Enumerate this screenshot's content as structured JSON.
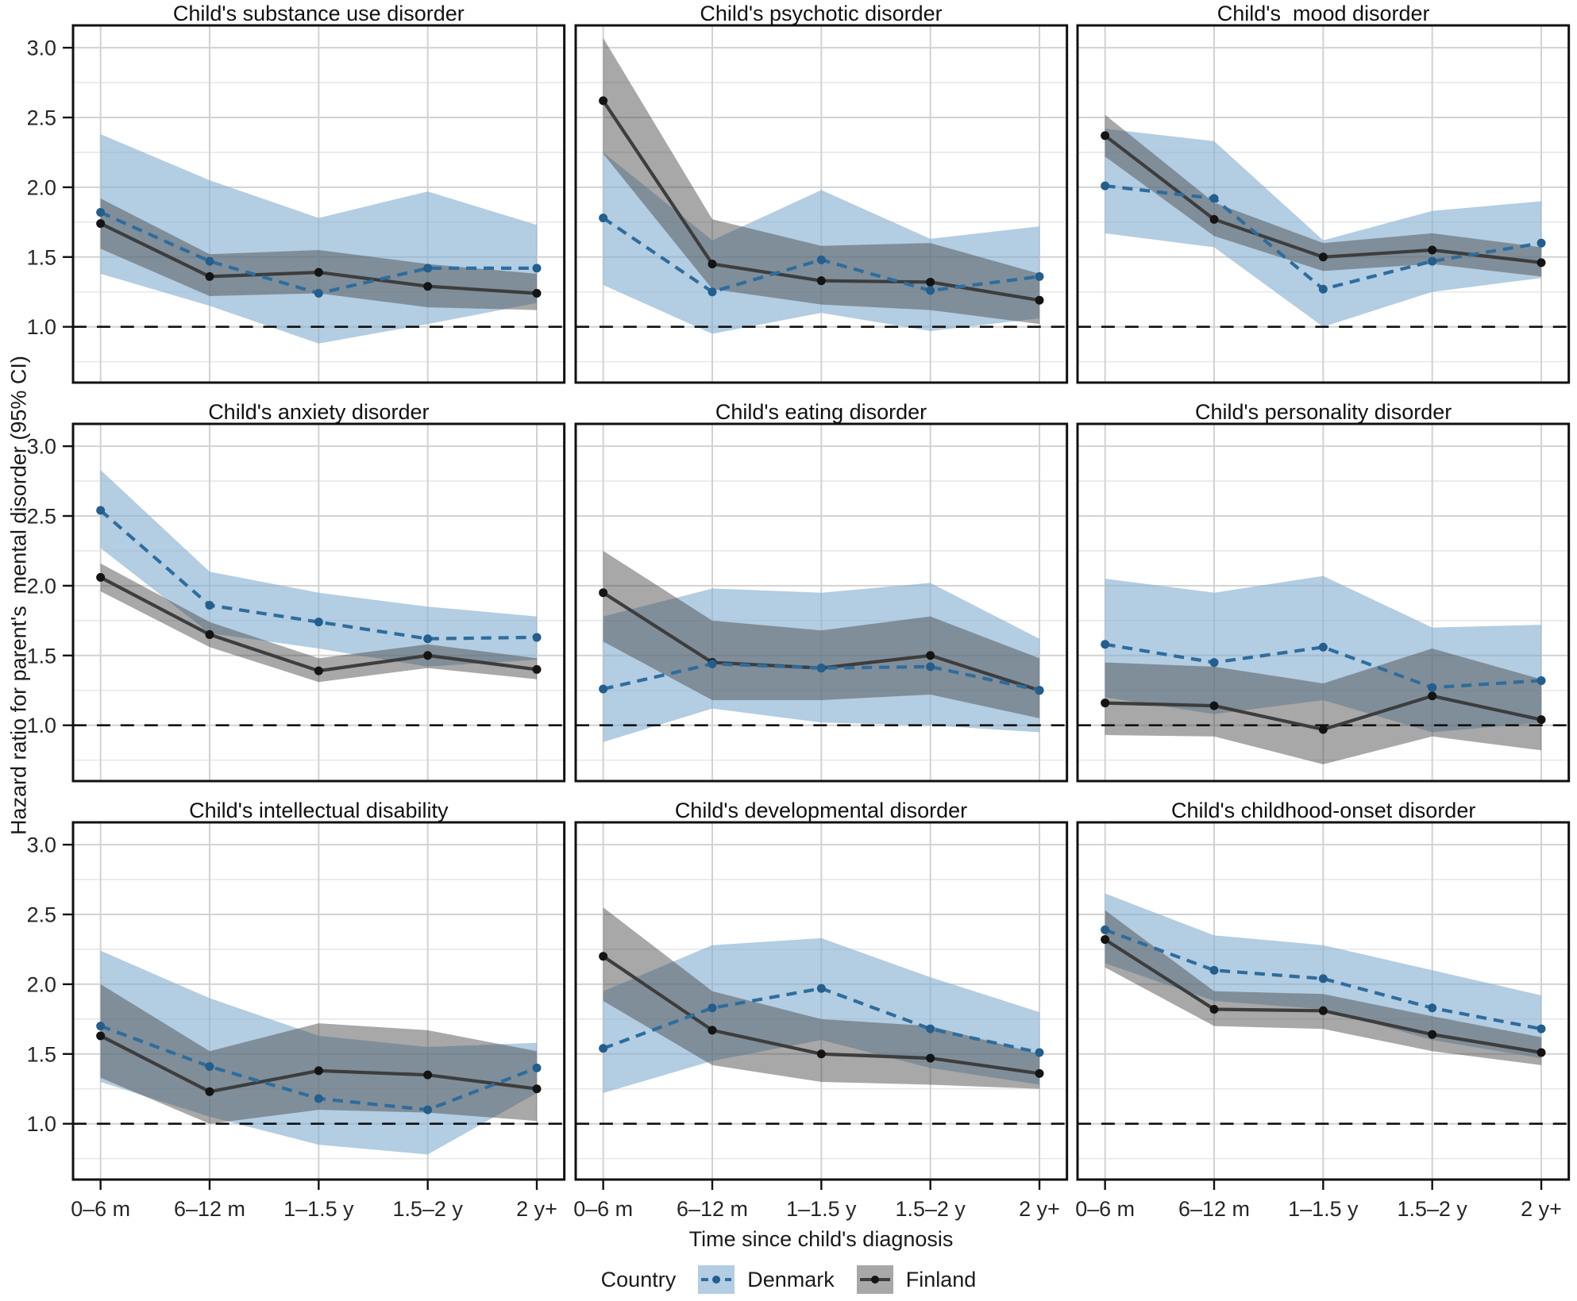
{
  "axes": {
    "y_label": "Hazard ratio for parent's  mental disorder (95% CI)",
    "x_label": "Time since child's diagnosis",
    "y_tick_labels": [
      "3.0",
      "2.5",
      "2.0",
      "1.5",
      "1.0"
    ]
  },
  "legend": {
    "title": "Country",
    "items": [
      {
        "label": "Denmark"
      },
      {
        "label": "Finland"
      }
    ]
  },
  "style": {
    "denmark_line": "#2e6d9d",
    "denmark_point": "#235e8c",
    "denmark_ribbon": "#84aed0",
    "denmark_ribbon_opacity": 0.62,
    "finland_line": "#3d3d3d",
    "finland_point": "#141414",
    "finland_ribbon": "#4a4a4a",
    "finland_ribbon_opacity": 0.48,
    "grid_major": "#d2d2d2",
    "grid_minor": "#e7e7e7",
    "border": "#111111",
    "ref_color": "#111111",
    "tick_label_color": "#262626"
  },
  "chart_data": {
    "type": "line",
    "categories": [
      "0–6 m",
      "6–12 m",
      "1–1.5 y",
      "1.5–2 y",
      "2 y+"
    ],
    "x_label": "Time since child's diagnosis",
    "y_label": "Hazard ratio for parent's  mental disorder (95% CI)",
    "ylim": [
      0.6,
      3.16
    ],
    "y_ticks": [
      3.0,
      2.5,
      2.0,
      1.5,
      1.0
    ],
    "y_minor": [
      2.75,
      2.25,
      1.75,
      1.25,
      0.75
    ],
    "ref_line": 1.0,
    "legend_position": "bottom",
    "panels": [
      {
        "title": "Child's substance use disorder",
        "series": [
          {
            "name": "Denmark",
            "values": [
              1.82,
              1.47,
              1.24,
              1.42,
              1.42
            ],
            "ci_lower": [
              1.38,
              1.15,
              0.88,
              1.02,
              1.17
            ],
            "ci_upper": [
              2.38,
              2.05,
              1.78,
              1.97,
              1.73
            ]
          },
          {
            "name": "Finland",
            "values": [
              1.74,
              1.36,
              1.39,
              1.29,
              1.24
            ],
            "ci_lower": [
              1.56,
              1.22,
              1.24,
              1.14,
              1.12
            ],
            "ci_upper": [
              1.92,
              1.52,
              1.55,
              1.45,
              1.38
            ]
          }
        ]
      },
      {
        "title": "Child's psychotic disorder",
        "series": [
          {
            "name": "Denmark",
            "values": [
              1.78,
              1.25,
              1.48,
              1.26,
              1.36
            ],
            "ci_lower": [
              1.3,
              0.95,
              1.1,
              0.97,
              1.06
            ],
            "ci_upper": [
              2.25,
              1.62,
              1.98,
              1.63,
              1.72
            ]
          },
          {
            "name": "Finland",
            "values": [
              2.62,
              1.45,
              1.33,
              1.32,
              1.19
            ],
            "ci_lower": [
              2.24,
              1.27,
              1.16,
              1.12,
              1.02
            ],
            "ci_upper": [
              3.07,
              1.77,
              1.58,
              1.6,
              1.38
            ]
          }
        ]
      },
      {
        "title": "Child's  mood disorder",
        "series": [
          {
            "name": "Denmark",
            "values": [
              2.01,
              1.92,
              1.27,
              1.47,
              1.6
            ],
            "ci_lower": [
              1.67,
              1.57,
              1.0,
              1.25,
              1.35
            ],
            "ci_upper": [
              2.42,
              2.33,
              1.62,
              1.83,
              1.9
            ]
          },
          {
            "name": "Finland",
            "values": [
              2.37,
              1.77,
              1.5,
              1.55,
              1.46
            ],
            "ci_lower": [
              2.22,
              1.65,
              1.4,
              1.45,
              1.36
            ],
            "ci_upper": [
              2.52,
              1.89,
              1.6,
              1.67,
              1.57
            ]
          }
        ]
      },
      {
        "title": "Child's anxiety disorder",
        "series": [
          {
            "name": "Denmark",
            "values": [
              2.54,
              1.86,
              1.74,
              1.62,
              1.63
            ],
            "ci_lower": [
              2.27,
              1.66,
              1.55,
              1.42,
              1.47
            ],
            "ci_upper": [
              2.83,
              2.1,
              1.95,
              1.85,
              1.78
            ]
          },
          {
            "name": "Finland",
            "values": [
              2.06,
              1.65,
              1.39,
              1.5,
              1.4
            ],
            "ci_lower": [
              1.96,
              1.56,
              1.31,
              1.41,
              1.33
            ],
            "ci_upper": [
              2.16,
              1.74,
              1.48,
              1.58,
              1.48
            ]
          }
        ]
      },
      {
        "title": "Child's eating disorder",
        "series": [
          {
            "name": "Denmark",
            "values": [
              1.26,
              1.44,
              1.41,
              1.42,
              1.25
            ],
            "ci_lower": [
              0.88,
              1.12,
              1.02,
              1.0,
              0.95
            ],
            "ci_upper": [
              1.78,
              1.98,
              1.95,
              2.02,
              1.62
            ]
          },
          {
            "name": "Finland",
            "values": [
              1.95,
              1.45,
              1.41,
              1.5,
              1.25
            ],
            "ci_lower": [
              1.6,
              1.18,
              1.18,
              1.22,
              1.05
            ],
            "ci_upper": [
              2.25,
              1.75,
              1.68,
              1.78,
              1.48
            ]
          }
        ]
      },
      {
        "title": "Child's personality disorder",
        "series": [
          {
            "name": "Denmark",
            "values": [
              1.58,
              1.45,
              1.56,
              1.27,
              1.32
            ],
            "ci_lower": [
              1.2,
              1.08,
              1.18,
              0.95,
              1.02
            ],
            "ci_upper": [
              2.05,
              1.95,
              2.07,
              1.7,
              1.72
            ]
          },
          {
            "name": "Finland",
            "values": [
              1.16,
              1.14,
              0.97,
              1.21,
              1.04
            ],
            "ci_lower": [
              0.93,
              0.92,
              0.72,
              0.92,
              0.82
            ],
            "ci_upper": [
              1.45,
              1.42,
              1.3,
              1.55,
              1.33
            ]
          }
        ]
      },
      {
        "title": "Child's intellectual disability",
        "series": [
          {
            "name": "Denmark",
            "values": [
              1.7,
              1.41,
              1.18,
              1.1,
              1.4
            ],
            "ci_lower": [
              1.3,
              1.05,
              0.85,
              0.78,
              1.22
            ],
            "ci_upper": [
              2.24,
              1.9,
              1.63,
              1.55,
              1.58
            ]
          },
          {
            "name": "Finland",
            "values": [
              1.63,
              1.23,
              1.38,
              1.35,
              1.25
            ],
            "ci_lower": [
              1.33,
              1.0,
              1.1,
              1.08,
              1.02
            ],
            "ci_upper": [
              2.0,
              1.52,
              1.72,
              1.67,
              1.52
            ]
          }
        ]
      },
      {
        "title": "Child's developmental disorder",
        "series": [
          {
            "name": "Denmark",
            "values": [
              1.54,
              1.83,
              1.97,
              1.68,
              1.51
            ],
            "ci_lower": [
              1.22,
              1.45,
              1.6,
              1.4,
              1.28
            ],
            "ci_upper": [
              1.95,
              2.28,
              2.33,
              2.05,
              1.8
            ]
          },
          {
            "name": "Finland",
            "values": [
              2.2,
              1.67,
              1.5,
              1.47,
              1.36
            ],
            "ci_lower": [
              1.88,
              1.42,
              1.3,
              1.28,
              1.25
            ],
            "ci_upper": [
              2.55,
              1.95,
              1.75,
              1.7,
              1.5
            ]
          }
        ]
      },
      {
        "title": "Child's childhood-onset disorder",
        "series": [
          {
            "name": "Denmark",
            "values": [
              2.39,
              2.1,
              2.04,
              1.83,
              1.68
            ],
            "ci_lower": [
              2.15,
              1.88,
              1.82,
              1.6,
              1.47
            ],
            "ci_upper": [
              2.65,
              2.35,
              2.28,
              2.1,
              1.92
            ]
          },
          {
            "name": "Finland",
            "values": [
              2.32,
              1.82,
              1.81,
              1.64,
              1.51
            ],
            "ci_lower": [
              2.12,
              1.7,
              1.68,
              1.52,
              1.42
            ],
            "ci_upper": [
              2.53,
              1.95,
              1.93,
              1.77,
              1.62
            ]
          }
        ]
      }
    ]
  }
}
